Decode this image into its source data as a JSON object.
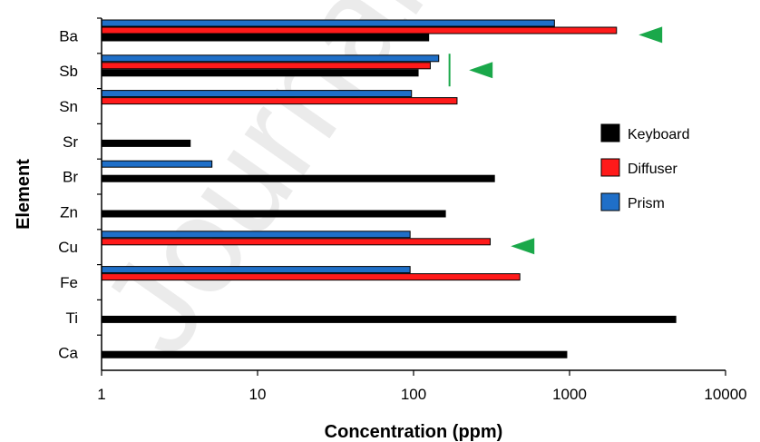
{
  "chart_data": {
    "type": "bar",
    "orientation": "horizontal",
    "xscale": "log",
    "xlim": [
      1,
      10000
    ],
    "xticks": [
      "1",
      "10",
      "100",
      "1000",
      "10000"
    ],
    "xlabel": "Concentration (ppm)",
    "ylabel": "Element",
    "categories": [
      "Ba",
      "Sb",
      "Sn",
      "Sr",
      "Br",
      "Zn",
      "Cu",
      "Fe",
      "Ti",
      "Ca"
    ],
    "series": [
      {
        "name": "Prism",
        "color": "#1f6fc8",
        "values": [
          800,
          145,
          97,
          null,
          5.1,
          null,
          95,
          95,
          null,
          null
        ]
      },
      {
        "name": "Diffuser",
        "color": "#ff1a1a",
        "values": [
          2000,
          128,
          190,
          null,
          null,
          null,
          310,
          480,
          null,
          null
        ]
      },
      {
        "name": "Keyboard",
        "color": "#000000",
        "values": [
          125,
          107,
          null,
          3.7,
          330,
          160,
          null,
          null,
          4800,
          960
        ]
      }
    ],
    "legend": {
      "position": "right",
      "order": [
        "Keyboard",
        "Diffuser",
        "Prism"
      ]
    },
    "annotations": [
      {
        "type": "triangle-marker",
        "color": "#1aa84a",
        "category": "Ba",
        "x": 3300
      },
      {
        "type": "triangle-marker",
        "color": "#1aa84a",
        "category": "Sb",
        "x": 270
      },
      {
        "type": "triangle-marker",
        "color": "#1aa84a",
        "category": "Cu",
        "x": 500
      },
      {
        "type": "vertical-line",
        "color": "#1aa84a",
        "category": "Sb",
        "x": 170
      }
    ],
    "grid": false
  },
  "watermark": {
    "text": "Journal Pre-proof"
  }
}
